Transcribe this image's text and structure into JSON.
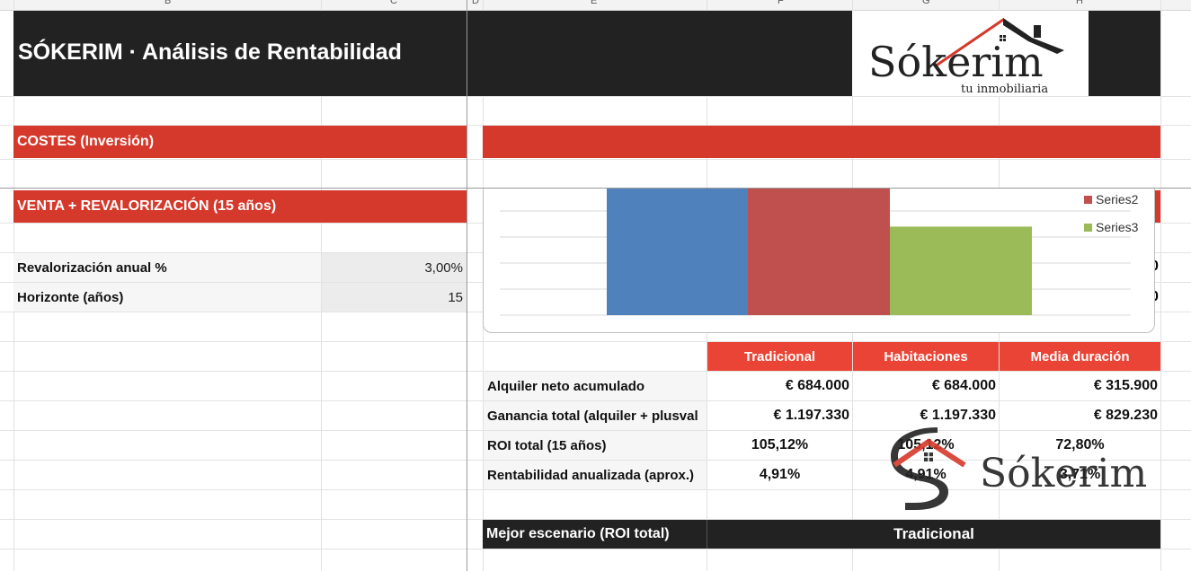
{
  "columns": [
    "B",
    "C",
    "D",
    "E",
    "F",
    "G",
    "H"
  ],
  "header": {
    "title": "SÓKERIM · Análisis de Rentabilidad"
  },
  "logo": {
    "brand": "Sókerim",
    "tagline": "tu inmobiliaria"
  },
  "sections": {
    "costes": "COSTES (Inversión)",
    "venta": "VENTA + REVALORIZACIÓN (15 años)"
  },
  "inputs": [
    {
      "label": "Revalorización anual %",
      "value": "3,00%"
    },
    {
      "label": "Horizonte (años)",
      "value": "15"
    }
  ],
  "chart_data": {
    "type": "bar",
    "series": [
      {
        "value": 1197330,
        "color": "#4f81bd"
      },
      {
        "name": "Series2",
        "value": 1197330,
        "color": "#c0504d"
      },
      {
        "name": "Series3",
        "value": 829230,
        "color": "#9bbb59"
      }
    ],
    "legend_position": "top-right",
    "grid": true
  },
  "table": {
    "headers": [
      "Tradicional",
      "Habitaciones",
      "Media duración"
    ],
    "rows": [
      {
        "label": "Alquiler neto acumulado",
        "values": [
          "€ 684.000",
          "€ 684.000",
          "€ 315.900"
        ]
      },
      {
        "label": "Ganancia total (alquiler + plusval",
        "values": [
          "€ 1.197.330",
          "€ 1.197.330",
          "€ 829.230"
        ]
      },
      {
        "label": "ROI total (15 años)",
        "values": [
          "105,12%",
          "105,12%",
          "72,80%"
        ]
      },
      {
        "label": "Rentabilidad anualizada (aprox.)",
        "values": [
          "4,91%",
          "4,91%",
          "3,71%"
        ]
      }
    ],
    "best": {
      "label": "Mejor escenario (ROI total)",
      "value": "Tradicional"
    }
  },
  "watermark": {
    "text": "Sókerim"
  },
  "colors": {
    "red": "#d5392b",
    "header_red": "#ea4436",
    "black": "#222222"
  }
}
